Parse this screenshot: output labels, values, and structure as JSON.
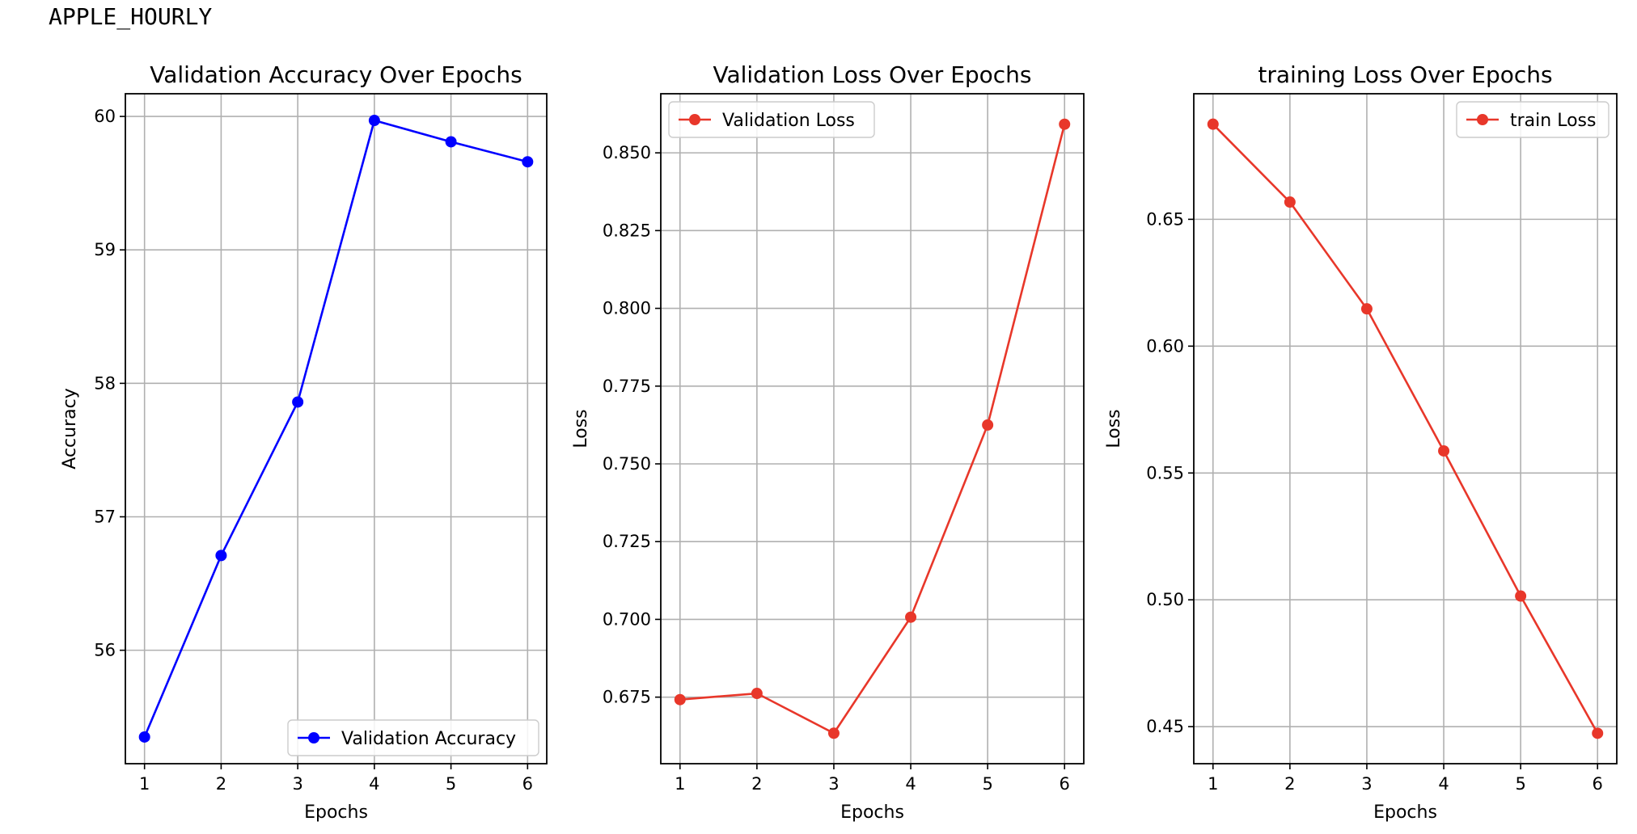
{
  "header": {
    "text": "APPLE_HOURLY"
  },
  "chart_data": [
    {
      "type": "line",
      "title": "Validation Accuracy Over Epochs",
      "xlabel": "Epochs",
      "ylabel": "Accuracy",
      "x": [
        1,
        2,
        3,
        4,
        5,
        6
      ],
      "series": [
        {
          "name": "Validation Accuracy",
          "values": [
            55.35,
            56.71,
            57.86,
            59.97,
            59.81,
            59.66
          ],
          "color": "#0000ff"
        }
      ],
      "xticks": [
        1,
        2,
        3,
        4,
        5,
        6
      ],
      "yticks": [
        56,
        57,
        58,
        59,
        60
      ],
      "ytick_labels": [
        "56",
        "57",
        "58",
        "59",
        "60"
      ],
      "xlim": [
        0.75,
        6.25
      ],
      "ylim": [
        55.15,
        60.17
      ],
      "grid": true,
      "legend": "lower-right"
    },
    {
      "type": "line",
      "title": "Validation Loss Over Epochs",
      "xlabel": "Epochs",
      "ylabel": "Loss",
      "x": [
        1,
        2,
        3,
        4,
        5,
        6
      ],
      "series": [
        {
          "name": "Validation Loss",
          "values": [
            0.6742,
            0.6762,
            0.6634,
            0.7007,
            0.7625,
            0.8592
          ],
          "color": "#e8372a"
        }
      ],
      "xticks": [
        1,
        2,
        3,
        4,
        5,
        6
      ],
      "yticks": [
        0.675,
        0.7,
        0.725,
        0.75,
        0.775,
        0.8,
        0.825,
        0.85
      ],
      "ytick_labels": [
        "0.675",
        "0.700",
        "0.725",
        "0.750",
        "0.775",
        "0.800",
        "0.825",
        "0.850"
      ],
      "xlim": [
        0.75,
        6.25
      ],
      "ylim": [
        0.6536,
        0.869
      ],
      "grid": true,
      "legend": "upper-left"
    },
    {
      "type": "line",
      "title": "training Loss Over Epochs",
      "xlabel": "Epochs",
      "ylabel": "Loss",
      "x": [
        1,
        2,
        3,
        4,
        5,
        6
      ],
      "series": [
        {
          "name": "train Loss",
          "values": [
            0.6875,
            0.6568,
            0.6147,
            0.5587,
            0.5015,
            0.4474
          ],
          "color": "#e8372a"
        }
      ],
      "xticks": [
        1,
        2,
        3,
        4,
        5,
        6
      ],
      "yticks": [
        0.45,
        0.5,
        0.55,
        0.6,
        0.65
      ],
      "ytick_labels": [
        "0.45",
        "0.50",
        "0.55",
        "0.60",
        "0.65"
      ],
      "xlim": [
        0.75,
        6.25
      ],
      "ylim": [
        0.4354,
        0.6995
      ],
      "grid": true,
      "legend": "upper-right"
    }
  ]
}
